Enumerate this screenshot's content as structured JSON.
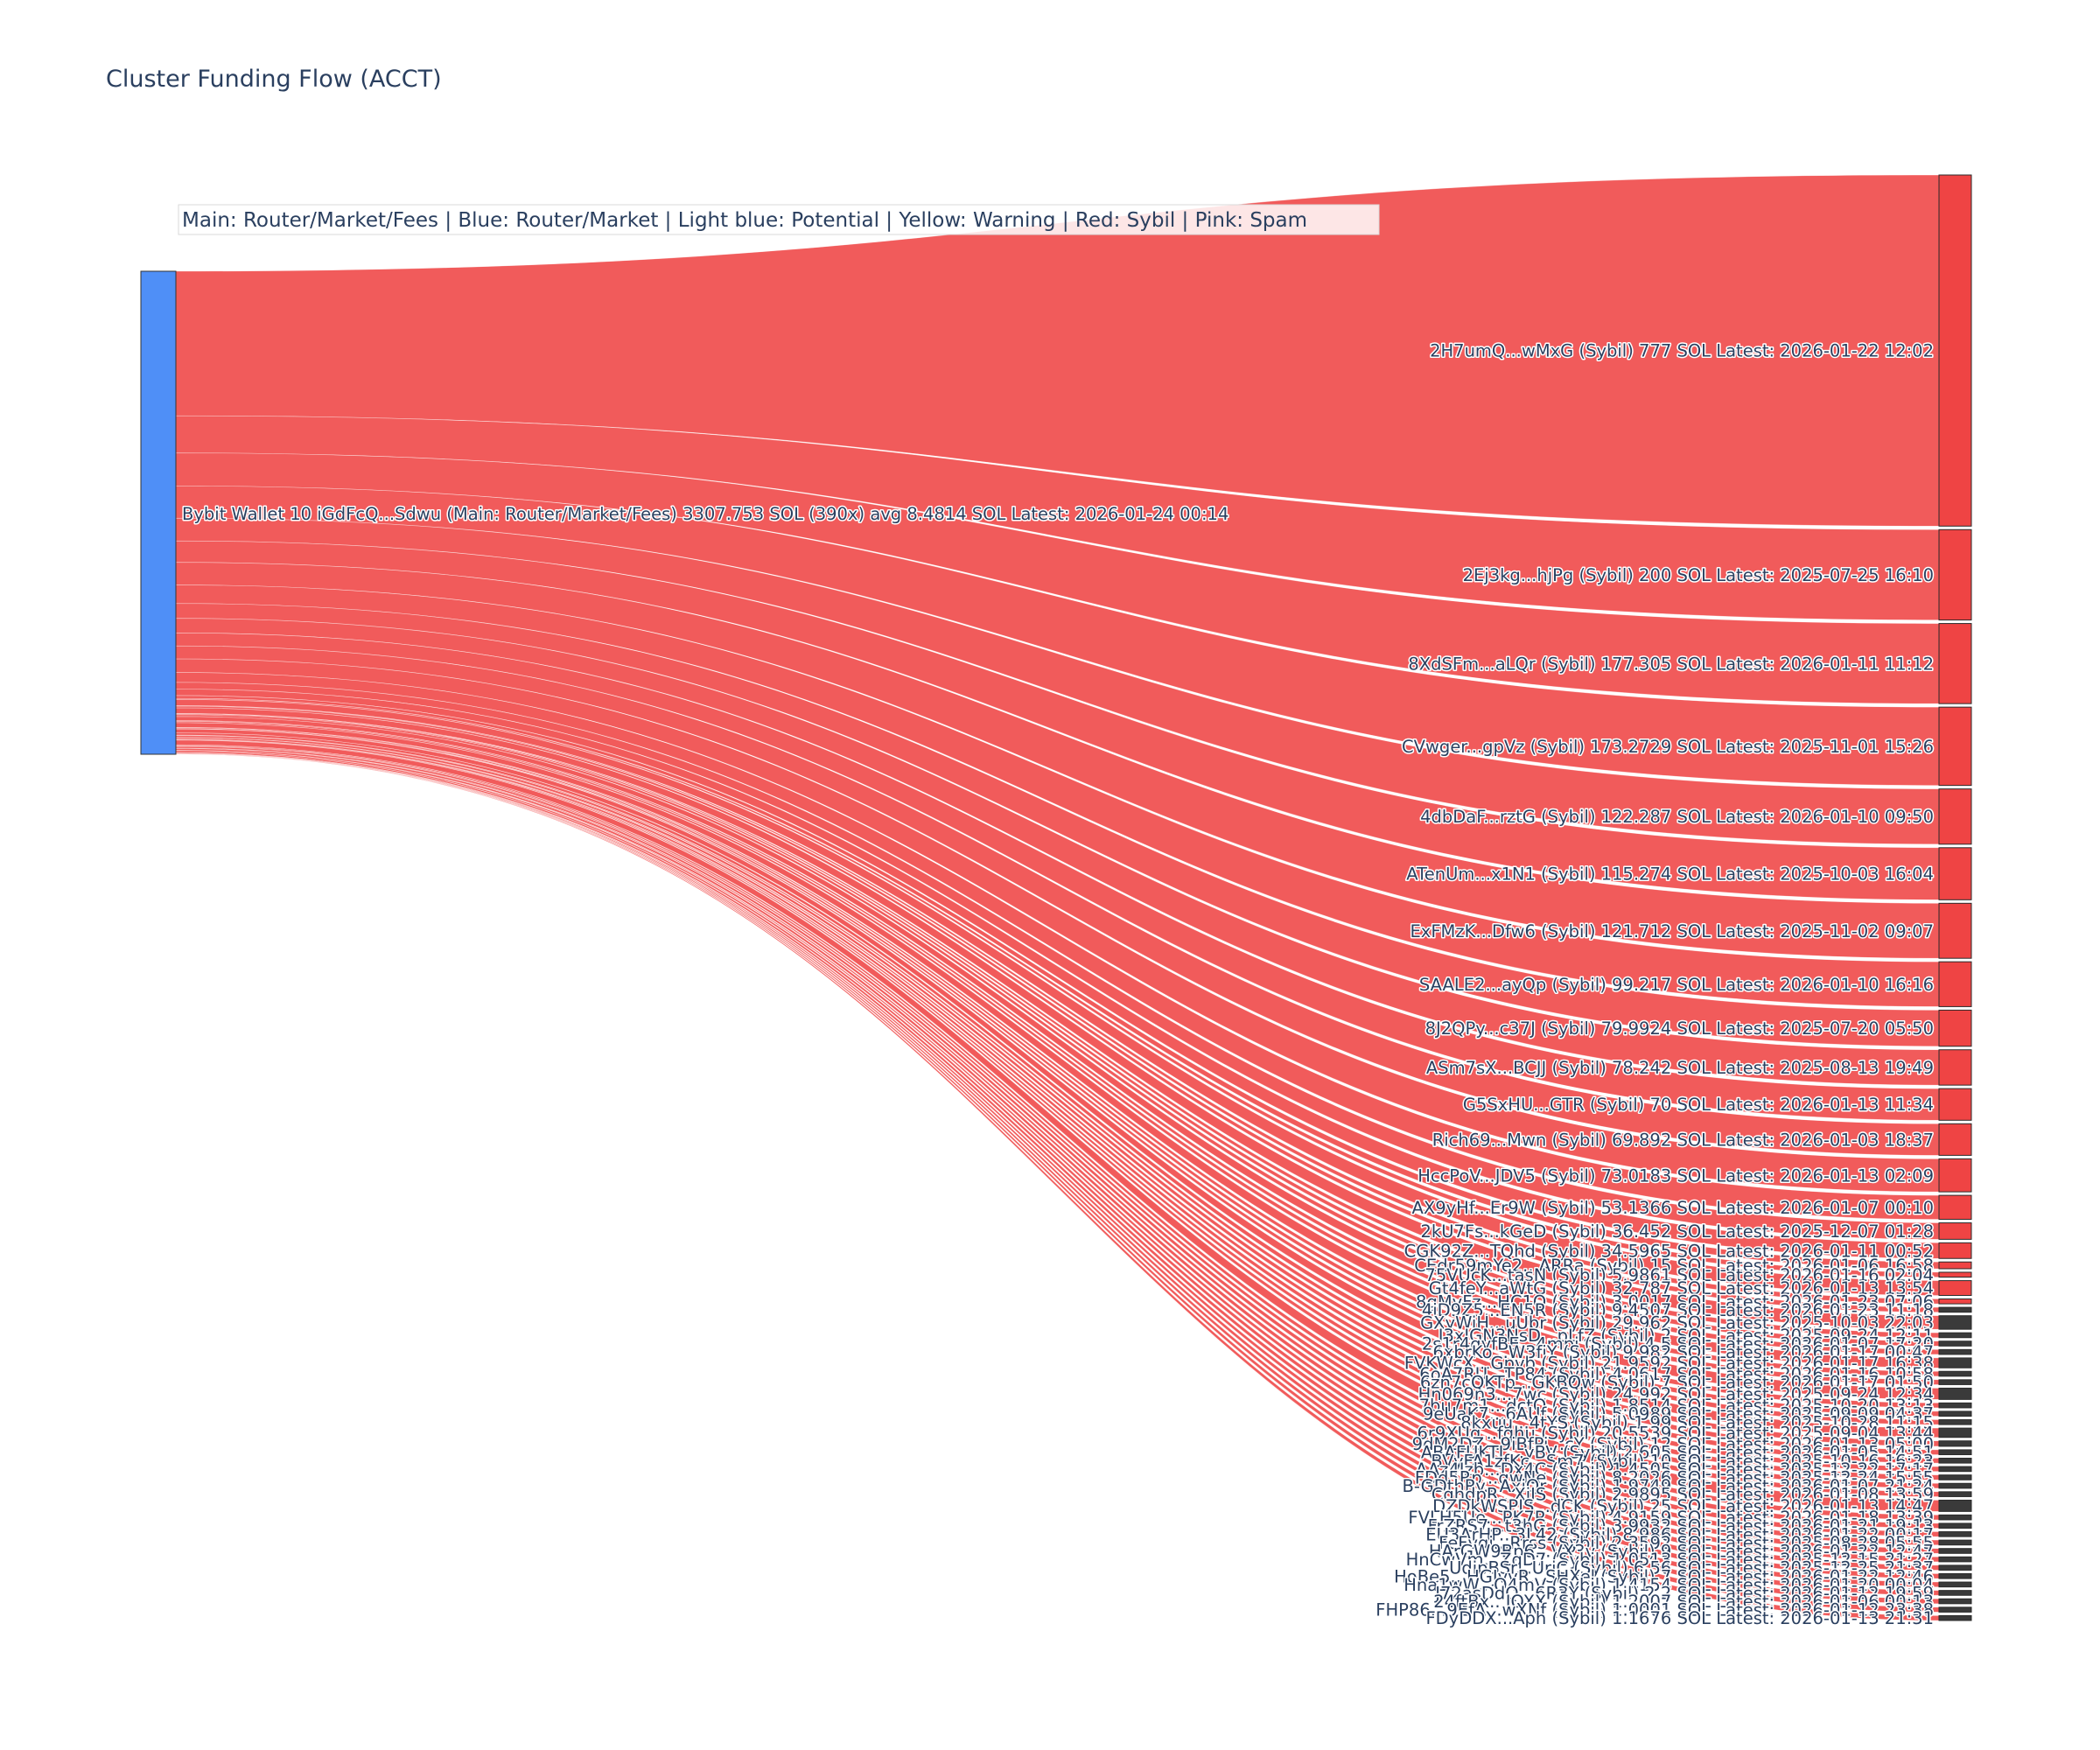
{
  "chart_data": {
    "type": "sankey",
    "title": "Cluster Funding Flow (ACCT)",
    "legend_text": "Main: Router/Market/Fees  |  Blue: Router/Market | Light blue: Potential | Yellow: Warning | Red: Sybil | Pink: Spam",
    "source": {
      "label": "Bybit Wallet 10 iGdFcQ...Sdwu (Main: Router/Market/Fees) 3307.753 SOL (390x) avg 8.4814 SOL Latest: 2026-01-24 00:14",
      "value": 3307.753,
      "color": "#4f8ff7"
    },
    "link_color": "#ef4444",
    "node_color_sybil": "#ef4444",
    "targets": [
      {
        "label": "2H7umQ...wMxG (Sybil) 777 SOL Latest: 2026-01-22 12:02",
        "value": 777
      },
      {
        "label": "2Ej3kg...hjPg (Sybil) 200 SOL Latest: 2025-07-25 16:10",
        "value": 200
      },
      {
        "label": "8XdSFm...aLQr (Sybil) 177.305 SOL Latest: 2026-01-11 11:12",
        "value": 177.305
      },
      {
        "label": "CVwger...gpVz (Sybil) 173.2729 SOL Latest: 2025-11-01 15:26",
        "value": 173.2729
      },
      {
        "label": "4dbDaF...rztG (Sybil) 122.287 SOL Latest: 2026-01-10 09:50",
        "value": 122.287
      },
      {
        "label": "ATenUm...x1N1 (Sybil) 115.274 SOL Latest: 2025-10-03 16:04",
        "value": 115.274
      },
      {
        "label": "ExFMzK...Dfw6 (Sybil) 121.712 SOL Latest: 2025-11-02 09:07",
        "value": 121.712
      },
      {
        "label": "SAALE2...ayQp (Sybil) 99.217 SOL Latest: 2026-01-10 16:16",
        "value": 99.217
      },
      {
        "label": "8J2QPy...c37J (Sybil) 79.9924 SOL Latest: 2025-07-20 05:50",
        "value": 79.9924
      },
      {
        "label": "ASm7sX...BCJJ (Sybil) 78.242 SOL Latest: 2025-08-13 19:49",
        "value": 78.242
      },
      {
        "label": "G5SxHU...GTR (Sybil) 70 SOL Latest: 2026-01-13 11:34",
        "value": 70
      },
      {
        "label": "Rich69...Mwn (Sybil) 69.892 SOL Latest: 2026-01-03 18:37",
        "value": 69.892
      },
      {
        "label": "HccPoV...JDV5 (Sybil) 73.0183 SOL Latest: 2026-01-13 02:09",
        "value": 73.0183
      },
      {
        "label": "AX9yHf...Er9W (Sybil) 53.1366 SOL Latest: 2026-01-07 00:10",
        "value": 53.1366
      },
      {
        "label": "2kU7Fs...kGeD (Sybil) 36.452 SOL Latest: 2025-12-07 01:28",
        "value": 36.452
      },
      {
        "label": "CGK92Z...TQhd (Sybil) 34.5965 SOL Latest: 2026-01-11 00:52",
        "value": 34.5965
      },
      {
        "label": "CEdr59mYe2...ARRa (Sybil) 15 SOL Latest: 2026-01-06 16:58",
        "value": 15
      },
      {
        "label": "75VUcK...tasN (Sybil) 5.9861 SOL Latest: 2026-01-16 02:04",
        "value": 5.9861
      },
      {
        "label": "Gt4feY...aWtG (Sybil) 32.787 SOL Latest: 2026-01-13 13:54",
        "value": 32.787
      },
      {
        "label": "8gMvFz...HC1Q (Sybil) 3.0017 SOL Latest: 2026-01-23 07:06",
        "value": 3.0017
      },
      {
        "label": "4iD9Z5...EN5R (Sybil) 9.4507 SOL Latest: 2026-01-23 11:18",
        "value": 9.4507
      },
      {
        "label": "GXyWiH...uUbr (Sybil) 29.962 SOL Latest: 2025-10-03 22:03",
        "value": 29.962
      },
      {
        "label": "J3xIGN3NsD...pLfZ (Sybil) 2 SOL Latest: 2025-09-24 12:11",
        "value": 2
      },
      {
        "label": "2s1r4gyfBE...4mpi (Sybil) 4.5 SOL Latest: 2026-01-07 17:20",
        "value": 4.5
      },
      {
        "label": "6xbrKo...W3fjY (Sybil) 9.982 SOL Latest: 2026-01-17 00:47",
        "value": 9.982
      },
      {
        "label": "FVKWcX...Gpvb (Sybil) 21.9592 SOL Latest: 2026-01-17 16:38",
        "value": 21.9592
      },
      {
        "label": "6oA7RU...TP84 (Sybil) 4.0617 SOL Latest: 2026-01-16 10:58",
        "value": 4.0617
      },
      {
        "label": "6zn7cQKTp...GKBQw (Sybil) 7 SOL Latest: 2026-01-17 01:50",
        "value": 7
      },
      {
        "label": "Hn069n3...7wc (Sybil) 24.992 SOL Latest: 2025-09-24 12:34",
        "value": 24.992
      },
      {
        "label": "7bu7m1...dctQ (Sybil) 1.8514 SOL Latest: 2025-10-20 13:13",
        "value": 1.8514
      },
      {
        "label": "9eUaK7...6AUf (Sybil) 5.0989 SOL Latest: 2025-09-09 04:37",
        "value": 5.0989
      },
      {
        "label": "8kxuu...4tYS (Sybil) 1.99 SOL Latest: 2025-10-28 11:15",
        "value": 1.99
      },
      {
        "label": "6r9XUg...fqhu (Sybil) 20.5539 SOL Latest: 2025-09-04 13:44",
        "value": 20.5539
      },
      {
        "label": "9dM2DZ...9iBfPi...cY (Sybil) 12 SOL Latest: 2026-01-13 05:00",
        "value": 12
      },
      {
        "label": "ABAFUKTL...yBV (Sybil) 2.605 SOL Latest: 2026-01-05 14:51",
        "value": 2.605
      },
      {
        "label": "BVyFA1zfKc...Sm7 (Sybil) 10 SOL Latest: 2025-10-16 16:23",
        "value": 10
      },
      {
        "label": "AAz4Izb...Dx4C (Sybil) 1.4505 SOL Latest: 2025-12-22 17:17",
        "value": 1.4505
      },
      {
        "label": "FDd5Rp...qwNe (Sybil) 8.2026 SOL Latest: 2025-12-24 15:55",
        "value": 8.2026
      },
      {
        "label": "B-GDthRy...AxiQr (Sybil) 1.9749 SOL Latest: 2026-01-07 21:24",
        "value": 1.9749
      },
      {
        "label": "CqhdpR...XjJS (Sybil) 2.9895 SOL Latest: 2026-01-08 13:59",
        "value": 2.9895
      },
      {
        "label": "DZDkWSPIS...dCK (Sybil) 25 SOL Latest: 2026-01-13 14:47",
        "value": 25
      },
      {
        "label": "FVLH5Ue...PK7R (Sybil) 4.9159 SOL Latest: 2026-01-18 13:39",
        "value": 4.9159
      },
      {
        "label": "FrZRS7...t3hG (Sybil) 3.9932 SOL Latest: 2026-01-21 19:13",
        "value": 3.9932
      },
      {
        "label": "EU3ArHP...3L42 (Sybil) 8.986 SOL Latest: 2026-01-22 00:17",
        "value": 8.986
      },
      {
        "label": "FeFvqi...Rrss (Sybil) 2.3592 SOL Latest: 2025-08-28 05:55",
        "value": 2.3592
      },
      {
        "label": "HArGW9Bp6...VX3v (Sybil) 9 SOL Latest: 2026-01-22 12:47",
        "value": 9
      },
      {
        "label": "HnCwVm...ZqD7 (Sybil) 1.0513 SOL Latest: 2025-12-15 21:27",
        "value": 1.0513
      },
      {
        "label": "UdipBSr...UrjC (Sybil) 6.56 SOL Latest: 2025-12-25 21:37",
        "value": 6.56
      },
      {
        "label": "HoBe5...HGJvvR...SHXel (Sybil) 7 SOL Latest: 2026-01-22 12:46",
        "value": 7
      },
      {
        "label": "Hna1wW...Q4mV (Sybil) 1.4154 SOL Latest: 2026-01-20 00:04",
        "value": 1.4154
      },
      {
        "label": "J72asDdQ...6R3Y (Sybil) 2.2 SOL Latest: 2026-01-12 19:59",
        "value": 2.2
      },
      {
        "label": "24ftBx...JOXX (Sybil) 1.2007 SOL Latest: 2026-01-06 00:13",
        "value": 1.2007
      },
      {
        "label": "FHP86...9EfA...wXNf (Sybil) 1.0001 SOL Latest: 2026-01-12 23:38",
        "value": 1.0001
      },
      {
        "label": "FDyDDX...Aph (Sybil) 1.1676 SOL Latest: 2026-01-13 21:31",
        "value": 1.1676
      }
    ]
  }
}
